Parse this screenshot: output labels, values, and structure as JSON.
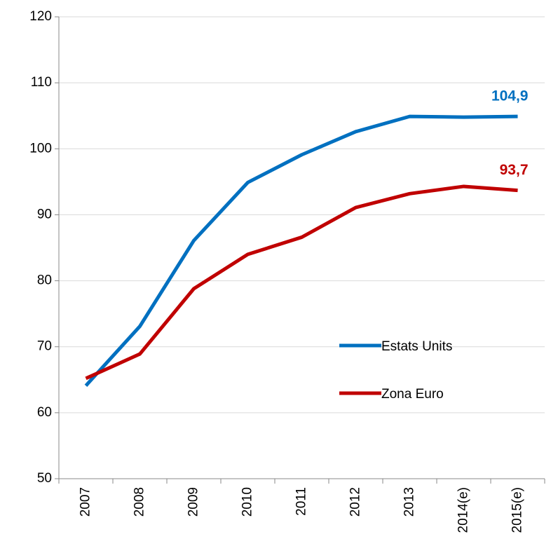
{
  "chart_data": {
    "type": "line",
    "categories": [
      "2007",
      "2008",
      "2009",
      "2010",
      "2011",
      "2012",
      "2013",
      "2014(e)",
      "2015(e)"
    ],
    "series": [
      {
        "name": "Estats Units",
        "color": "#0070c0",
        "values": [
          64.1,
          73.1,
          86.1,
          94.9,
          99.1,
          102.6,
          104.9,
          104.8,
          104.9
        ],
        "value_labels": [
          null,
          null,
          null,
          null,
          null,
          null,
          null,
          null,
          "104,9"
        ]
      },
      {
        "name": "Zona Euro",
        "color": "#c00000",
        "values": [
          65.2,
          68.9,
          78.8,
          84.0,
          86.6,
          91.1,
          93.2,
          94.3,
          93.7
        ],
        "value_labels": [
          null,
          null,
          null,
          null,
          null,
          null,
          null,
          null,
          "93,7"
        ]
      }
    ],
    "ylim": [
      50,
      120
    ],
    "yticks": [
      50,
      60,
      70,
      80,
      90,
      100,
      110,
      120
    ],
    "grid": true,
    "legend": "right"
  }
}
